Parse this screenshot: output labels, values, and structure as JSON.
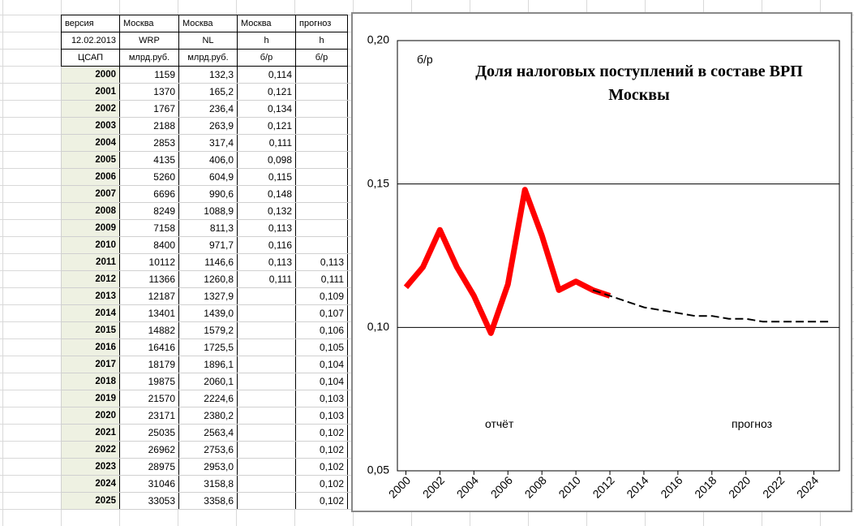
{
  "table": {
    "header": [
      [
        "версия",
        "Москва",
        "Москва",
        "Москва",
        "прогноз"
      ],
      [
        "12.02.2013",
        "WRP",
        "NL",
        "h",
        "h"
      ],
      [
        "ЦСАП",
        "млрд.руб.",
        "млрд.руб.",
        "б/р",
        "б/р"
      ]
    ],
    "rows": [
      [
        "2000",
        "1159",
        "132,3",
        "0,114",
        null
      ],
      [
        "2001",
        "1370",
        "165,2",
        "0,121",
        null
      ],
      [
        "2002",
        "1767",
        "236,4",
        "0,134",
        null
      ],
      [
        "2003",
        "2188",
        "263,9",
        "0,121",
        null
      ],
      [
        "2004",
        "2853",
        "317,4",
        "0,111",
        null
      ],
      [
        "2005",
        "4135",
        "406,0",
        "0,098",
        null
      ],
      [
        "2006",
        "5260",
        "604,9",
        "0,115",
        null
      ],
      [
        "2007",
        "6696",
        "990,6",
        "0,148",
        null
      ],
      [
        "2008",
        "8249",
        "1088,9",
        "0,132",
        null
      ],
      [
        "2009",
        "7158",
        "811,3",
        "0,113",
        null
      ],
      [
        "2010",
        "8400",
        "971,7",
        "0,116",
        null
      ],
      [
        "2011",
        "10112",
        "1146,6",
        "0,113",
        "0,113"
      ],
      [
        "2012",
        "11366",
        "1260,8",
        "0,111",
        "0,111"
      ],
      [
        "2013",
        "12187",
        "1327,9",
        null,
        "0,109"
      ],
      [
        "2014",
        "13401",
        "1439,0",
        null,
        "0,107"
      ],
      [
        "2015",
        "14882",
        "1579,2",
        null,
        "0,106"
      ],
      [
        "2016",
        "16416",
        "1725,5",
        null,
        "0,105"
      ],
      [
        "2017",
        "18179",
        "1896,1",
        null,
        "0,104"
      ],
      [
        "2018",
        "19875",
        "2060,1",
        null,
        "0,104"
      ],
      [
        "2019",
        "21570",
        "2224,6",
        null,
        "0,103"
      ],
      [
        "2020",
        "23171",
        "2380,2",
        null,
        "0,103"
      ],
      [
        "2021",
        "25035",
        "2563,4",
        null,
        "0,102"
      ],
      [
        "2022",
        "26962",
        "2753,6",
        null,
        "0,102"
      ],
      [
        "2023",
        "28975",
        "2953,0",
        null,
        "0,102"
      ],
      [
        "2024",
        "31046",
        "3158,8",
        null,
        "0,102"
      ],
      [
        "2025",
        "33053",
        "3358,6",
        null,
        "0,102"
      ]
    ]
  },
  "chart_data": {
    "type": "line",
    "title": "Доля налоговых поступлений в составе ВРП Москвы",
    "y_unit": "б/р",
    "annotations": [
      "отчёт",
      "прогноз"
    ],
    "series": [
      {
        "color": "#ff0000",
        "style": "solid",
        "x": [
          2000,
          2001,
          2002,
          2003,
          2004,
          2005,
          2006,
          2007,
          2008,
          2009,
          2010,
          2011,
          2012
        ],
        "values": [
          0.114,
          0.121,
          0.134,
          0.121,
          0.111,
          0.098,
          0.115,
          0.148,
          0.132,
          0.113,
          0.116,
          0.113,
          0.111
        ]
      },
      {
        "color": "#000000",
        "style": "dashed",
        "x": [
          2011,
          2012,
          2013,
          2014,
          2015,
          2016,
          2017,
          2018,
          2019,
          2020,
          2021,
          2022,
          2023,
          2024,
          2025
        ],
        "values": [
          0.113,
          0.111,
          0.109,
          0.107,
          0.106,
          0.105,
          0.104,
          0.104,
          0.103,
          0.103,
          0.102,
          0.102,
          0.102,
          0.102,
          0.102
        ]
      }
    ],
    "xlim": [
      1999.5,
      2025.5
    ],
    "xticks": [
      2000,
      2002,
      2004,
      2006,
      2008,
      2010,
      2012,
      2014,
      2016,
      2018,
      2020,
      2022,
      2024
    ],
    "ylim": [
      0.05,
      0.2
    ],
    "yticks": [
      {
        "value": 0.05,
        "label": "0,05"
      },
      {
        "value": 0.1,
        "label": "0,10"
      },
      {
        "value": 0.15,
        "label": "0,15"
      },
      {
        "value": 0.2,
        "label": "0,20"
      }
    ],
    "grid": true
  }
}
